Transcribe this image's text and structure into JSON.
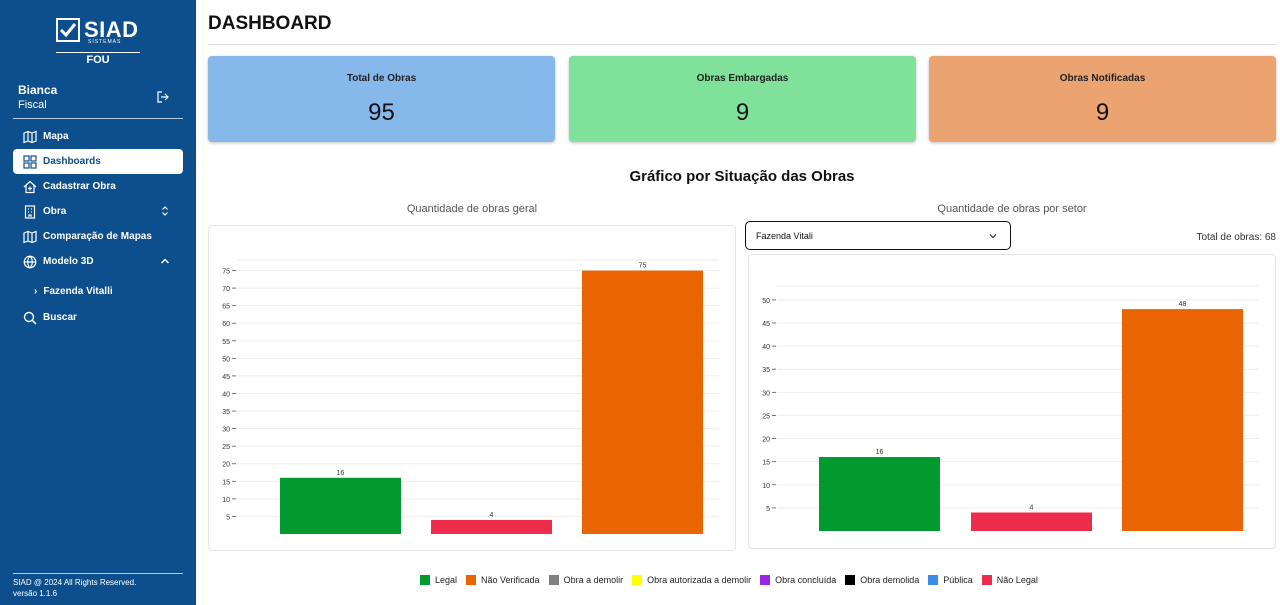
{
  "brand": {
    "name": "SIAD",
    "sub": "SISTEMAS",
    "org": "FOU"
  },
  "user": {
    "name": "Bianca",
    "role": "Fiscal"
  },
  "nav": {
    "mapa": "Mapa",
    "dashboards": "Dashboards",
    "cadastrar": "Cadastrar Obra",
    "obra": "Obra",
    "comparacao": "Comparação de Mapas",
    "modelo3d": "Modelo 3D",
    "fazenda": "Fazenda Vitalli",
    "buscar": "Buscar"
  },
  "footer": {
    "copyright": "SIAD @ 2024 All Rights Reserved.",
    "version": "versão 1.1.6"
  },
  "page": {
    "title": "DASHBOARD"
  },
  "cards": [
    {
      "label": "Total de Obras",
      "value": "95",
      "color": "#87b8eb"
    },
    {
      "label": "Obras Embargadas",
      "value": "9",
      "color": "#80e29a"
    },
    {
      "label": "Obras Notificadas",
      "value": "9",
      "color": "#eba372"
    }
  ],
  "section": {
    "title": "Gráfico por Situação das Obras"
  },
  "chart_left": {
    "subtitle": "Quantidade de obras geral"
  },
  "chart_right": {
    "subtitle": "Quantidade de obras por setor",
    "select_value": "Fazenda Vitali",
    "total_label": "Total de obras: 68"
  },
  "legend": [
    {
      "label": "Legal",
      "color": "#009a2e"
    },
    {
      "label": "Não Verificada",
      "color": "#ea6404"
    },
    {
      "label": "Obra a demolir",
      "color": "#808080"
    },
    {
      "label": "Obra autorizada a demolir",
      "color": "#ffff00"
    },
    {
      "label": "Obra concluída",
      "color": "#9b24e6"
    },
    {
      "label": "Obra demolida",
      "color": "#000000"
    },
    {
      "label": "Pública",
      "color": "#3b8de8"
    },
    {
      "label": "Não Legal",
      "color": "#ee2c4b"
    }
  ],
  "chart_data": [
    {
      "type": "bar",
      "title": "Quantidade de obras geral",
      "categories": [
        "Legal",
        "Não Legal",
        "Não Verificada"
      ],
      "values": [
        16,
        4,
        75
      ],
      "colors": [
        "#009a2e",
        "#ee2c4b",
        "#ea6404"
      ],
      "yticks": [
        5,
        10,
        15,
        20,
        25,
        30,
        35,
        40,
        45,
        50,
        55,
        60,
        65,
        70,
        75
      ],
      "ylim": [
        0,
        78
      ]
    },
    {
      "type": "bar",
      "title": "Quantidade de obras por setor",
      "categories": [
        "Legal",
        "Não Legal",
        "Não Verificada"
      ],
      "values": [
        16,
        4,
        48
      ],
      "colors": [
        "#009a2e",
        "#ee2c4b",
        "#ea6404"
      ],
      "yticks": [
        5,
        10,
        15,
        20,
        25,
        30,
        35,
        40,
        45,
        50
      ],
      "ylim": [
        0,
        53
      ]
    }
  ]
}
